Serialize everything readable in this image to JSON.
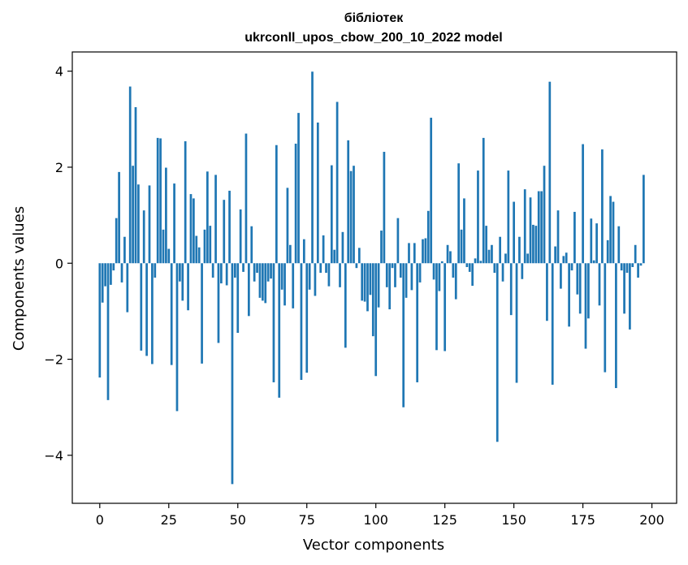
{
  "chart_data": {
    "type": "bar",
    "title_line1": "бібліотек",
    "title_line2": "ukrconll_upos_cbow_200_10_2022 model",
    "xlabel": "Vector components",
    "ylabel": "Components values",
    "xlim": [
      -9.95,
      208.95
    ],
    "ylim": [
      -5.0,
      4.4
    ],
    "xticks": [
      {
        "value": 0,
        "label": "0"
      },
      {
        "value": 25,
        "label": "25"
      },
      {
        "value": 50,
        "label": "50"
      },
      {
        "value": 75,
        "label": "75"
      },
      {
        "value": 100,
        "label": "100"
      },
      {
        "value": 125,
        "label": "125"
      },
      {
        "value": 150,
        "label": "150"
      },
      {
        "value": 175,
        "label": "175"
      },
      {
        "value": 200,
        "label": "200"
      }
    ],
    "yticks": [
      {
        "value": -4,
        "label": "−4"
      },
      {
        "value": -2,
        "label": "−2"
      },
      {
        "value": 0,
        "label": "0"
      },
      {
        "value": 2,
        "label": "2"
      },
      {
        "value": 4,
        "label": "4"
      }
    ],
    "bar_color": "#1f77b4",
    "grid": false,
    "values": [
      -2.38,
      -0.82,
      -0.48,
      -2.85,
      -0.45,
      -0.15,
      0.94,
      1.9,
      -0.4,
      0.55,
      -1.02,
      3.68,
      2.03,
      3.25,
      1.64,
      -1.82,
      1.1,
      -1.93,
      1.62,
      -2.1,
      -0.3,
      2.61,
      2.6,
      0.7,
      1.99,
      0.3,
      -2.12,
      1.66,
      -3.08,
      -0.38,
      -0.78,
      2.54,
      -0.98,
      1.44,
      1.35,
      0.57,
      0.33,
      -2.09,
      0.7,
      1.91,
      0.78,
      -0.3,
      1.84,
      -1.66,
      -0.42,
      1.32,
      -0.46,
      1.51,
      -4.6,
      -0.3,
      -1.45,
      1.12,
      -0.18,
      2.7,
      -1.1,
      0.77,
      -0.38,
      -0.2,
      -0.72,
      -0.78,
      -0.83,
      -0.38,
      -0.32,
      -2.48,
      2.46,
      -2.8,
      -0.55,
      -0.88,
      1.57,
      0.38,
      -0.94,
      2.49,
      3.13,
      -2.43,
      0.5,
      -2.28,
      -0.55,
      3.99,
      -0.68,
      2.93,
      -0.2,
      0.58,
      -0.2,
      -0.48,
      2.04,
      0.28,
      3.36,
      -0.5,
      0.65,
      -1.76,
      2.56,
      1.92,
      2.03,
      -0.1,
      0.32,
      -0.78,
      -0.8,
      -1.0,
      -0.66,
      -1.52,
      -2.35,
      -0.92,
      0.68,
      2.32,
      -0.5,
      -0.96,
      -0.1,
      -0.5,
      0.94,
      -0.3,
      -3.0,
      -0.72,
      0.42,
      -0.56,
      0.42,
      -2.48,
      -0.4,
      0.5,
      0.52,
      1.09,
      3.03,
      -0.34,
      -1.81,
      -0.58,
      0.04,
      -1.83,
      0.38,
      0.25,
      -0.3,
      -0.75,
      2.08,
      0.7,
      1.35,
      -0.08,
      -0.18,
      -0.47,
      0.1,
      1.93,
      0.05,
      2.61,
      0.78,
      0.28,
      0.38,
      -0.2,
      -3.72,
      0.55,
      -0.38,
      0.2,
      1.93,
      -1.08,
      1.28,
      -2.49,
      0.55,
      -0.33,
      1.54,
      0.2,
      1.37,
      0.8,
      0.78,
      1.5,
      1.5,
      2.03,
      -1.2,
      3.78,
      -2.53,
      0.35,
      1.1,
      -0.53,
      0.15,
      0.22,
      -1.32,
      -0.15,
      1.07,
      -0.65,
      -1.05,
      2.48,
      -1.78,
      -1.15,
      0.93,
      0.06,
      0.83,
      -0.88,
      2.37,
      -2.27,
      0.48,
      1.4,
      1.28,
      -2.6,
      0.77,
      -0.15,
      -1.05,
      -0.2,
      -1.38,
      -0.08,
      0.38,
      -0.3,
      -0.05,
      1.84
    ]
  }
}
